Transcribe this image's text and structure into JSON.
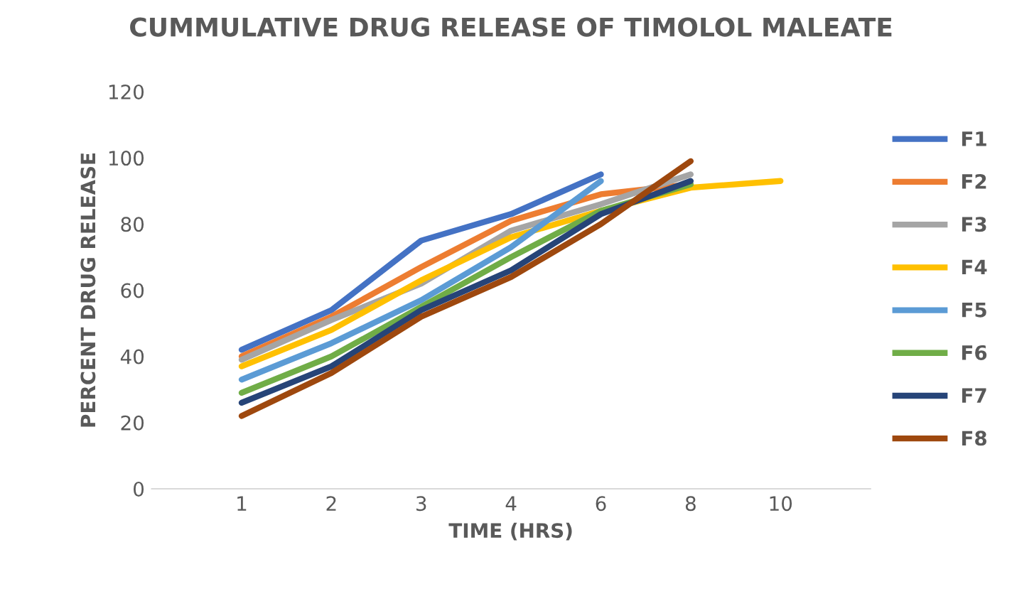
{
  "chart_data": {
    "type": "line",
    "title": "CUMMULATIVE DRUG RELEASE OF TIMOLOL MALEATE",
    "xlabel": "TIME (HRS)",
    "ylabel": "PERCENT DRUG RELEASE",
    "categories": [
      "1",
      "2",
      "3",
      "4",
      "6",
      "8",
      "10"
    ],
    "ylim": [
      0,
      120
    ],
    "yticks": [
      0,
      20,
      40,
      60,
      80,
      100,
      120
    ],
    "grid": false,
    "legend": "right",
    "marker": "none",
    "line_style": "solid",
    "series": [
      {
        "name": "F1",
        "color": "#4472c4",
        "values": [
          42,
          54,
          75,
          83,
          95,
          null,
          null
        ]
      },
      {
        "name": "F2",
        "color": "#ed7d31",
        "values": [
          40,
          52,
          67,
          81,
          89,
          92,
          null
        ]
      },
      {
        "name": "F3",
        "color": "#a5a5a5",
        "values": [
          39,
          51,
          62,
          78,
          86,
          95,
          null
        ]
      },
      {
        "name": "F4",
        "color": "#ffc000",
        "values": [
          37,
          48,
          63,
          76,
          84,
          91,
          93
        ]
      },
      {
        "name": "F5",
        "color": "#5b9bd5",
        "values": [
          33,
          44,
          57,
          73,
          93,
          null,
          null
        ]
      },
      {
        "name": "F6",
        "color": "#70ad47",
        "values": [
          29,
          40,
          55,
          70,
          84,
          92,
          null
        ]
      },
      {
        "name": "F7",
        "color": "#264478",
        "values": [
          26,
          37,
          54,
          66,
          83,
          93,
          null
        ]
      },
      {
        "name": "F8",
        "color": "#9e480e",
        "values": [
          22,
          35,
          52,
          64,
          80,
          99,
          null
        ]
      }
    ]
  }
}
